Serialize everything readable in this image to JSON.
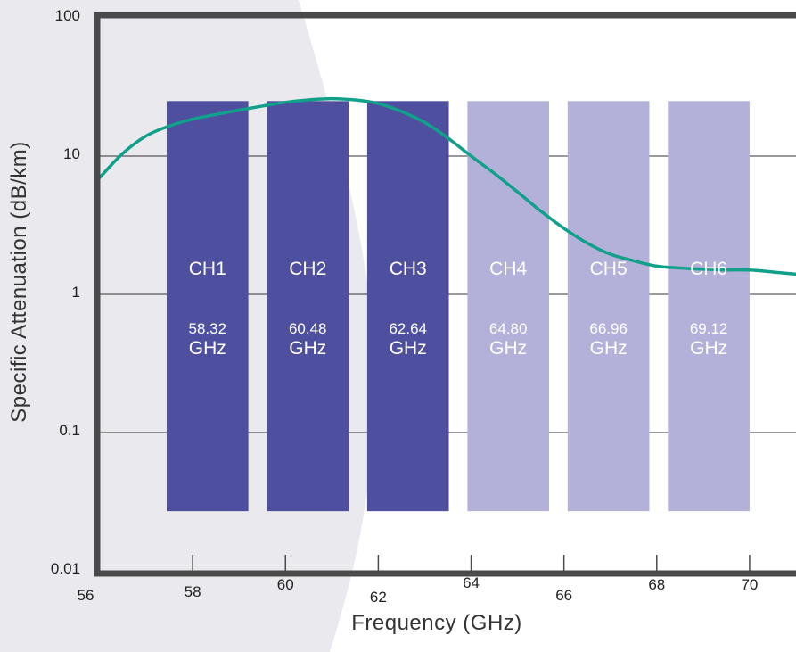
{
  "chart_data": {
    "type": "bar",
    "xlabel": "Frequency (GHz)",
    "ylabel": "Specific Attenuation (dB/km)",
    "xlim": [
      56,
      71
    ],
    "ylim": [
      0.01,
      100
    ],
    "yscale": "log",
    "x_ticks": [
      {
        "value": 56,
        "label": "56"
      },
      {
        "value": 58,
        "label": "58"
      },
      {
        "value": 60,
        "label": "60"
      },
      {
        "value": 62,
        "label": "62"
      },
      {
        "value": 64,
        "label": "64"
      },
      {
        "value": 66,
        "label": "66"
      },
      {
        "value": 68,
        "label": "68"
      },
      {
        "value": 70,
        "label": "70"
      }
    ],
    "y_ticks": [
      {
        "value": 0.01,
        "label": "0.01"
      },
      {
        "value": 0.1,
        "label": "0.1"
      },
      {
        "value": 1,
        "label": "1"
      },
      {
        "value": 10,
        "label": "10"
      },
      {
        "value": 100,
        "label": "100"
      }
    ],
    "grid": true,
    "channels": [
      {
        "name": "CH1",
        "center": 58.32,
        "freq_label": "58.32",
        "unit": "GHz",
        "color": "#4f4f9f",
        "text_color": "#ffffff"
      },
      {
        "name": "CH2",
        "center": 60.48,
        "freq_label": "60.48",
        "unit": "GHz",
        "color": "#4f4f9f",
        "text_color": "#ffffff"
      },
      {
        "name": "CH3",
        "center": 62.64,
        "freq_label": "62.64",
        "unit": "GHz",
        "color": "#4f4f9f",
        "text_color": "#ffffff"
      },
      {
        "name": "CH4",
        "center": 64.8,
        "freq_label": "64.80",
        "unit": "GHz",
        "color": "#b3b1d9",
        "text_color": "#ffffff"
      },
      {
        "name": "CH5",
        "center": 66.96,
        "freq_label": "66.96",
        "unit": "GHz",
        "color": "#b3b1d9",
        "text_color": "#ffffff"
      },
      {
        "name": "CH6",
        "center": 69.12,
        "freq_label": "69.12",
        "unit": "GHz",
        "color": "#b3b1d9",
        "text_color": "#ffffff"
      }
    ],
    "channel_bar": {
      "width_ghz": 1.76,
      "y_bottom": 0.027,
      "y_top": 25
    },
    "series": [
      {
        "color": "#11a08a",
        "x": [
          56.0,
          56.5,
          57.0,
          57.5,
          58.0,
          58.5,
          59.0,
          59.5,
          60.0,
          60.5,
          61.0,
          61.5,
          62.0,
          62.5,
          63.0,
          63.5,
          64.0,
          64.5,
          65.0,
          65.5,
          66.0,
          66.5,
          67.0,
          67.5,
          68.0,
          68.5,
          69.0,
          69.5,
          70.0,
          70.5,
          71.0
        ],
        "y": [
          7.0,
          10.5,
          14.0,
          16.5,
          18.5,
          20.0,
          21.5,
          23.0,
          24.5,
          25.5,
          26.0,
          25.5,
          24.0,
          21.0,
          17.5,
          13.5,
          10.0,
          7.5,
          5.5,
          4.0,
          3.0,
          2.35,
          1.95,
          1.75,
          1.6,
          1.55,
          1.52,
          1.5,
          1.5,
          1.45,
          1.4
        ]
      }
    ],
    "colors": {
      "frame": "#4a4a4a",
      "grid": "#333333",
      "background_left": "#e9e9ee",
      "background_right": "#ffffff"
    }
  }
}
